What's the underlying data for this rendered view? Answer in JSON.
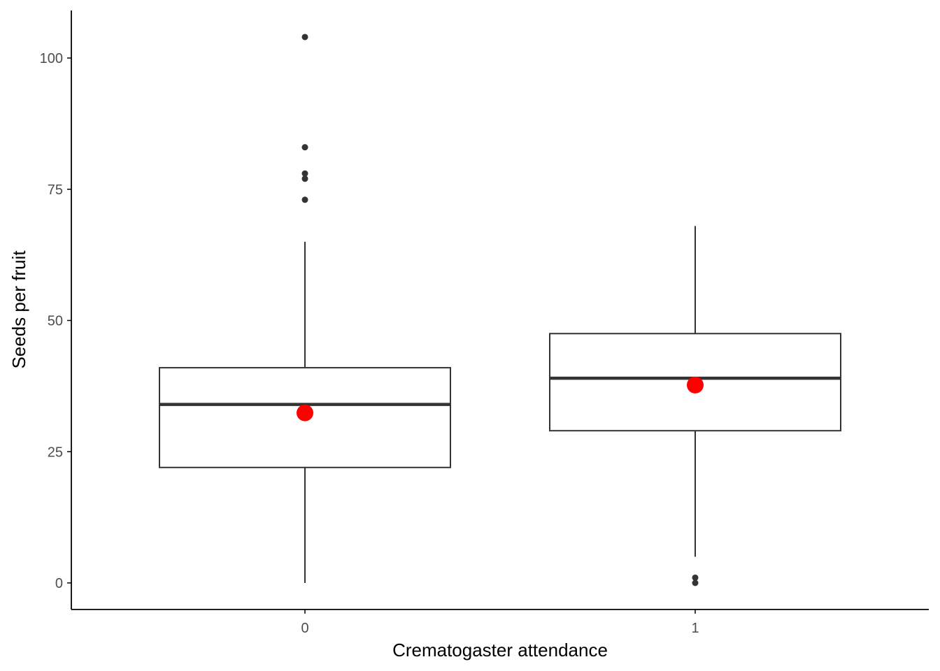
{
  "chart_data": {
    "type": "box",
    "xlabel": "Crematogaster attendance",
    "ylabel": "Seeds per fruit",
    "ylim": [
      -5,
      109
    ],
    "y_ticks": [
      0,
      25,
      50,
      75,
      100
    ],
    "grid": false,
    "legend": "none",
    "categories": [
      "0",
      "1"
    ],
    "boxes": [
      {
        "category": "0",
        "whisker_low": 0,
        "q1": 22,
        "median": 34,
        "q3": 41,
        "whisker_high": 65,
        "mean": 32.4,
        "outliers": [
          73,
          77,
          78,
          83,
          104
        ]
      },
      {
        "category": "1",
        "whisker_low": 5,
        "q1": 29,
        "median": 39,
        "q3": 47.5,
        "whisker_high": 68,
        "mean": 37.7,
        "outliers": [
          0,
          1
        ]
      }
    ],
    "colors": {
      "box_line": "#333333",
      "median_line": "#333333",
      "outlier": "#333333",
      "mean_point": "#ff0000",
      "axis": "#000000",
      "tick_text": "#4d4d4d"
    }
  }
}
